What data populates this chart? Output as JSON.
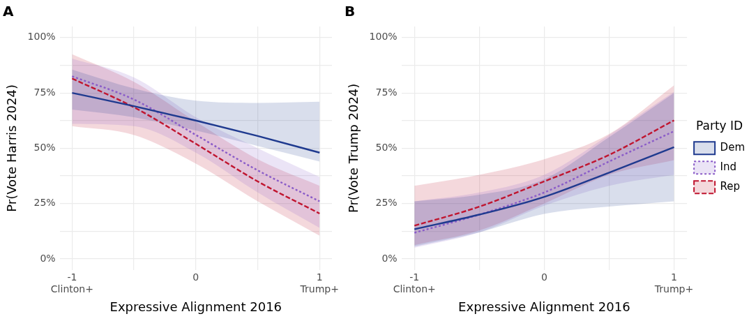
{
  "chart_data": [
    {
      "type": "line",
      "title": "A",
      "xlabel": "Expressive Alignment 2016",
      "ylabel": "Pr(Vote Harris 2024)",
      "x": [
        -1,
        -0.5,
        0,
        0.5,
        1
      ],
      "series": [
        {
          "color": "#1f3a8f",
          "line_style": "solid",
          "values": [
            75,
            69,
            62.5,
            55.5,
            48
          ],
          "lower": [
            67.5,
            64,
            58,
            51,
            44
          ],
          "upper": [
            85.5,
            77,
            71.5,
            70.5,
            71
          ]
        },
        {
          "color": "#8a5cc8",
          "line_style": "dotted",
          "values": [
            82.5,
            72,
            56,
            40,
            26
          ],
          "lower": [
            61,
            60,
            48,
            30,
            14
          ],
          "upper": [
            90.5,
            82,
            64,
            50,
            37
          ]
        },
        {
          "color": "#c0152f",
          "line_style": "dashed",
          "values": [
            81.5,
            68.5,
            52,
            35,
            20.5
          ],
          "lower": [
            60,
            56,
            43,
            26,
            10.5
          ],
          "upper": [
            92.5,
            80,
            62,
            45,
            33
          ]
        }
      ],
      "xlim": [
        -1.1,
        1.1
      ],
      "xticks": [
        {
          "value": -1,
          "label": "-1\nClinton+"
        },
        {
          "value": -0.5,
          "label": null
        },
        {
          "value": 0,
          "label": "0"
        },
        {
          "value": 0.5,
          "label": null
        },
        {
          "value": 1,
          "label": "1\nTrump+"
        }
      ],
      "ylim": [
        -5,
        105
      ],
      "yticks": [
        {
          "value": 0,
          "label": "0%"
        },
        {
          "value": 12.5,
          "label": null
        },
        {
          "value": 25,
          "label": "25%"
        },
        {
          "value": 37.5,
          "label": null
        },
        {
          "value": 50,
          "label": "50%"
        },
        {
          "value": 62.5,
          "label": null
        },
        {
          "value": 75,
          "label": "75%"
        },
        {
          "value": 87.5,
          "label": null
        },
        {
          "value": 100,
          "label": "100%"
        }
      ],
      "grid": true,
      "legend": false
    },
    {
      "type": "line",
      "title": "B",
      "xlabel": "Expressive Alignment 2016",
      "ylabel": "Pr(Vote Trump 2024)",
      "legend_title": "Party ID",
      "x": [
        -1,
        -0.5,
        0,
        0.5,
        1
      ],
      "series": [
        {
          "name": "Dem",
          "color": "#1f3a8f",
          "line_style": "solid",
          "values": [
            13.4,
            20,
            28,
            39,
            50.5
          ],
          "lower": [
            5.6,
            12,
            20.3,
            23.6,
            26
          ],
          "upper": [
            26,
            29,
            36,
            55,
            75
          ]
        },
        {
          "name": "Ind",
          "color": "#8a5cc8",
          "line_style": "dotted",
          "values": [
            11.8,
            20,
            30,
            44,
            57.7
          ],
          "lower": [
            5,
            12,
            24,
            33,
            38
          ],
          "upper": [
            26,
            30,
            38,
            56,
            75.5
          ]
        },
        {
          "name": "Rep",
          "color": "#c0152f",
          "line_style": "dashed",
          "values": [
            15,
            23.6,
            35,
            47,
            62.6
          ],
          "lower": [
            6.2,
            12.8,
            25,
            38,
            44.6
          ],
          "upper": [
            33,
            38,
            45,
            56.4,
            78.4
          ]
        }
      ],
      "xlim": [
        -1.1,
        1.1
      ],
      "xticks": [
        {
          "value": -1,
          "label": "-1\nClinton+"
        },
        {
          "value": -0.5,
          "label": null
        },
        {
          "value": 0,
          "label": "0"
        },
        {
          "value": 0.5,
          "label": null
        },
        {
          "value": 1,
          "label": "1\nTrump+"
        }
      ],
      "ylim": [
        -5,
        105
      ],
      "yticks": [
        {
          "value": 0,
          "label": "0%"
        },
        {
          "value": 12.5,
          "label": null
        },
        {
          "value": 25,
          "label": "25%"
        },
        {
          "value": 37.5,
          "label": null
        },
        {
          "value": 50,
          "label": "50%"
        },
        {
          "value": 62.5,
          "label": null
        },
        {
          "value": 75,
          "label": "75%"
        },
        {
          "value": 87.5,
          "label": null
        },
        {
          "value": 100,
          "label": "100%"
        }
      ],
      "grid": true,
      "legend": "right"
    }
  ]
}
